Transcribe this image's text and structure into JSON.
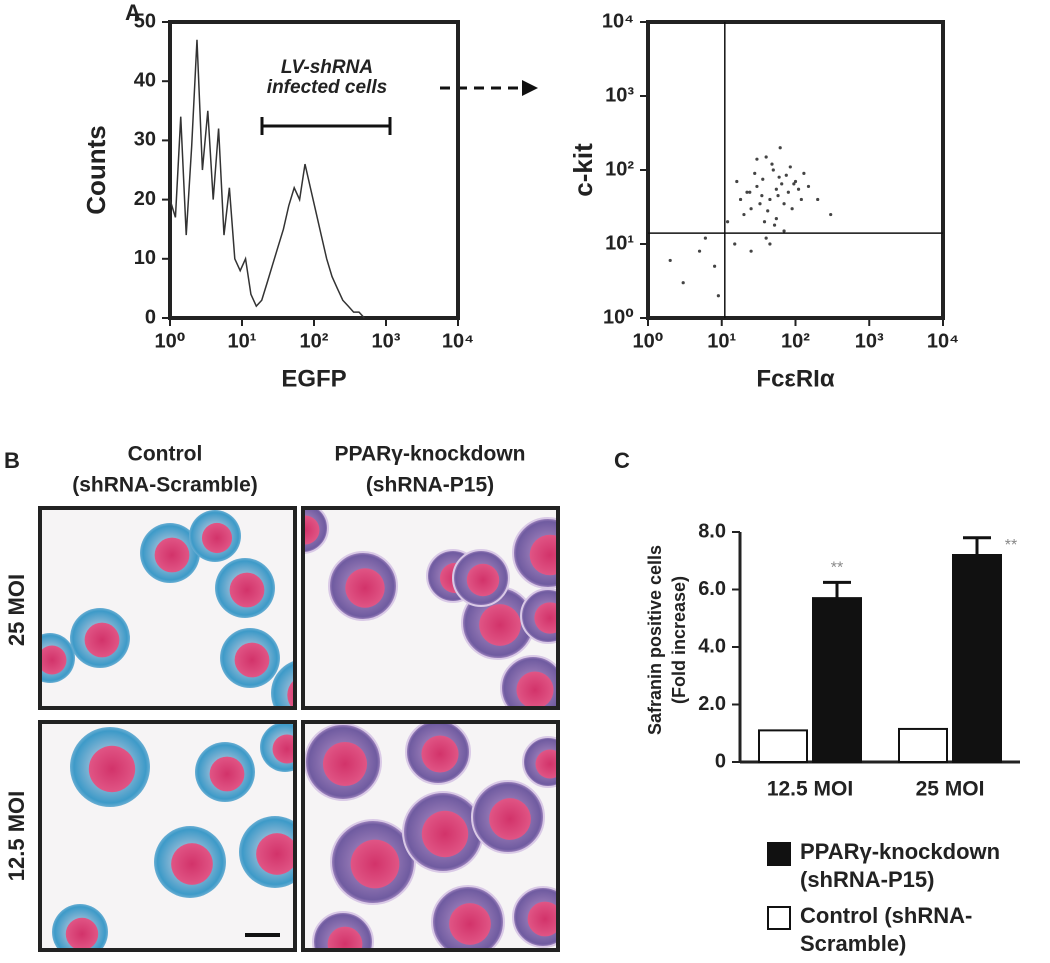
{
  "panel_labels": [
    "A",
    "B",
    "C"
  ],
  "micrographs": {
    "columns": [
      {
        "title": "Control",
        "subtitle": "(shRNA-Scramble)"
      },
      {
        "title": "PPARγ-knockdown",
        "subtitle": "(shRNA-P15)"
      }
    ],
    "rows": [
      "25 MOI",
      "12.5 MOI"
    ]
  },
  "chart_data": [
    {
      "type": "line",
      "xlabel": "EGFP",
      "ylabel": "Counts",
      "xlog": true,
      "annotation": [
        "LV-shRNA",
        "infected cells"
      ],
      "x": [
        1.0,
        1.19,
        1.41,
        1.68,
        2.0,
        2.37,
        2.82,
        3.35,
        3.98,
        4.73,
        5.62,
        6.68,
        7.94,
        9.44,
        11.2,
        13.3,
        15.8,
        18.8,
        22.4,
        26.6,
        31.6,
        37.6,
        44.7,
        53.1,
        63.1,
        75.0,
        89.1,
        106,
        126,
        150,
        178,
        211,
        251,
        299,
        355,
        422,
        501
      ],
      "series": [
        {
          "color": "#333333",
          "values": [
            20,
            17,
            34,
            14,
            29,
            47,
            25,
            35,
            20,
            32,
            14,
            22,
            10,
            8,
            10,
            4,
            2,
            3,
            6,
            9,
            12,
            15,
            19,
            22,
            20,
            26,
            22,
            18,
            14,
            10,
            7,
            5,
            3,
            2,
            1,
            1,
            0
          ]
        }
      ],
      "xlim": [
        1,
        10000
      ],
      "xticks": [
        {
          "value": 1,
          "label": "10⁰"
        },
        {
          "value": 10,
          "label": "10¹"
        },
        {
          "value": 100,
          "label": "10²"
        },
        {
          "value": 1000,
          "label": "10³"
        },
        {
          "value": 10000,
          "label": "10⁴"
        }
      ],
      "ylim": [
        0,
        50
      ],
      "yticks": [
        0,
        10,
        20,
        30,
        40,
        50
      ]
    },
    {
      "type": "scatter",
      "xlabel": "FcεRIα",
      "ylabel": "c-kit",
      "xlog": true,
      "ylog": true,
      "color": "#444444",
      "quadrant_x": 11,
      "quadrant_y": 14,
      "x": [
        30,
        45,
        60,
        25,
        80,
        50,
        35,
        100,
        20,
        70,
        40,
        55,
        120,
        28,
        65,
        90,
        38,
        48,
        150,
        22,
        75,
        33,
        58,
        42,
        85,
        18,
        110,
        52,
        36,
        62,
        15,
        8,
        5,
        12,
        3,
        6,
        25,
        40,
        9,
        2,
        200,
        300,
        16,
        70,
        45,
        30,
        55,
        130,
        24,
        95
      ],
      "y": [
        60,
        40,
        80,
        30,
        50,
        100,
        45,
        70,
        25,
        35,
        150,
        55,
        40,
        90,
        65,
        30,
        20,
        120,
        60,
        50,
        85,
        35,
        45,
        28,
        110,
        40,
        55,
        18,
        75,
        200,
        10,
        5,
        8,
        20,
        3,
        12,
        8,
        12,
        2,
        6,
        40,
        25,
        70,
        15,
        10,
        140,
        22,
        90,
        50,
        65
      ],
      "xlim": [
        1,
        10000
      ],
      "ylim": [
        1,
        10000
      ],
      "xticks": [
        {
          "value": 1,
          "label": "10⁰"
        },
        {
          "value": 10,
          "label": "10¹"
        },
        {
          "value": 100,
          "label": "10²"
        },
        {
          "value": 1000,
          "label": "10³"
        },
        {
          "value": 10000,
          "label": "10⁴"
        }
      ],
      "yticks": [
        {
          "value": 1,
          "label": "10⁰"
        },
        {
          "value": 10,
          "label": "10¹"
        },
        {
          "value": 100,
          "label": "10²"
        },
        {
          "value": 1000,
          "label": "10³"
        },
        {
          "value": 10000,
          "label": "10⁴"
        }
      ]
    },
    {
      "type": "bar",
      "ylabel": [
        "Safranin positive cells",
        "(Fold increase)"
      ],
      "categories": [
        "12.5 MOI",
        "25 MOI"
      ],
      "series": [
        {
          "name": "Control (shRNA-Scramble)",
          "color": "#ffffff",
          "values": [
            1.1,
            1.15
          ]
        },
        {
          "name": "PPARγ-knockdown (shRNA-P15)",
          "color": "#111111",
          "values": [
            5.7,
            7.2
          ],
          "errors": [
            0.55,
            0.6
          ],
          "annotations": [
            "**",
            "**"
          ]
        }
      ],
      "ylim": [
        0,
        8
      ],
      "yticks": [
        0,
        {
          "value": 2,
          "label": "2.0"
        },
        {
          "value": 4,
          "label": "4.0"
        },
        {
          "value": 6,
          "label": "6.0"
        },
        {
          "value": 8,
          "label": "8.0"
        }
      ]
    }
  ]
}
